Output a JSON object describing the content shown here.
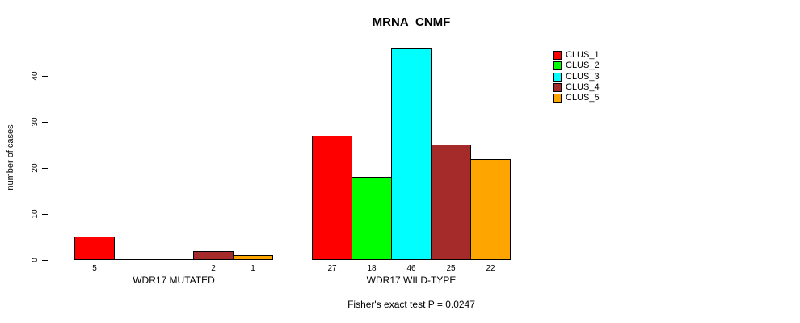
{
  "title": "MRNA_CNMF",
  "y_axis": {
    "label": "number of cases",
    "ticks": [
      0,
      10,
      20,
      30,
      40
    ]
  },
  "legend": {
    "items": [
      {
        "label": "CLUS_1",
        "color": "#FF0000"
      },
      {
        "label": "CLUS_2",
        "color": "#00FF00"
      },
      {
        "label": "CLUS_3",
        "color": "#00FFFF"
      },
      {
        "label": "CLUS_4",
        "color": "#A52A2A"
      },
      {
        "label": "CLUS_5",
        "color": "#FFA500"
      }
    ]
  },
  "footer": "Fisher's exact test P = 0.0247",
  "chart_data": {
    "type": "bar",
    "title": "MRNA_CNMF",
    "ylabel": "number of cases",
    "xlabel": "",
    "ylim": [
      0,
      46
    ],
    "yticks": [
      0,
      10,
      20,
      30,
      40
    ],
    "grid": false,
    "legend_position": "top-right",
    "series": [
      "CLUS_1",
      "CLUS_2",
      "CLUS_3",
      "CLUS_4",
      "CLUS_5"
    ],
    "colors": [
      "#FF0000",
      "#00FF00",
      "#00FFFF",
      "#A52A2A",
      "#FFA500"
    ],
    "groups": [
      {
        "label": "WDR17 MUTATED",
        "values": [
          5,
          0,
          0,
          2,
          1
        ]
      },
      {
        "label": "WDR17 WILD-TYPE",
        "values": [
          27,
          18,
          46,
          25,
          22
        ]
      }
    ],
    "bar_value_labels_shown": true,
    "annotation": "Fisher's exact test P = 0.0247"
  }
}
